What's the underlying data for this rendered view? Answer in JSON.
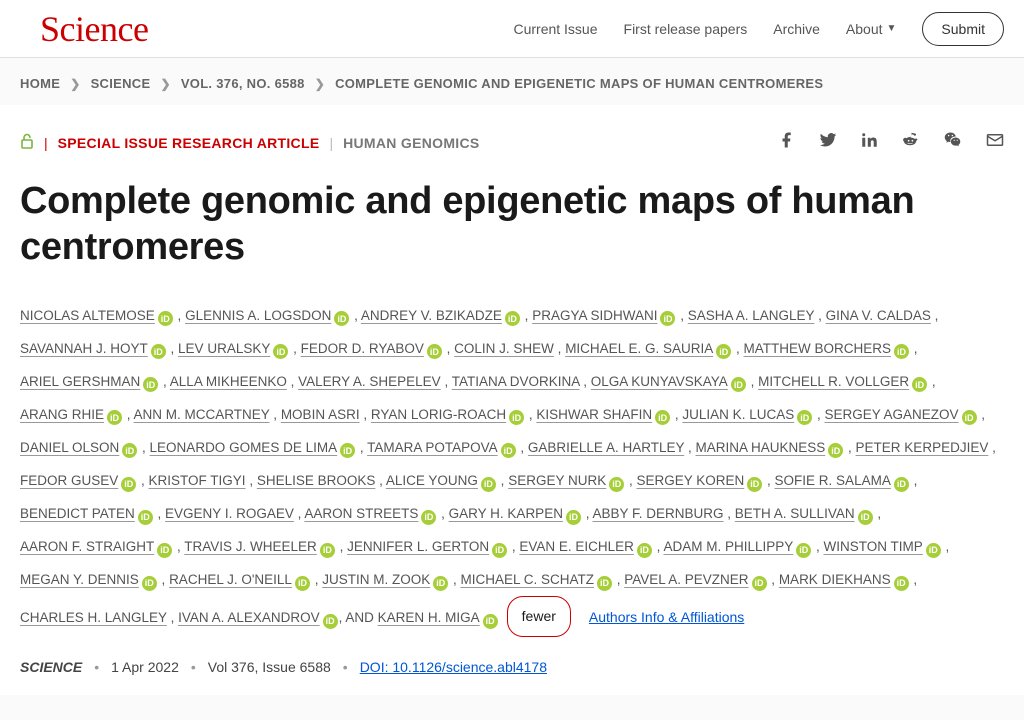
{
  "header": {
    "logo": "Science",
    "nav": {
      "current_issue": "Current Issue",
      "first_release": "First release papers",
      "archive": "Archive",
      "about": "About",
      "submit": "Submit"
    }
  },
  "breadcrumb": {
    "home": "HOME",
    "journal": "SCIENCE",
    "volume": "VOL. 376, NO. 6588",
    "article": "COMPLETE GENOMIC AND EPIGENETIC MAPS OF HUMAN CENTROMERES",
    "separator": "❯"
  },
  "meta": {
    "article_type": "SPECIAL ISSUE RESEARCH ARTICLE",
    "category": "HUMAN GENOMICS"
  },
  "title": "Complete genomic and epigenetic maps of human centromeres",
  "authors": [
    {
      "name": "NICOLAS ALTEMOSE",
      "orcid": true
    },
    {
      "name": "GLENNIS A. LOGSDON",
      "orcid": true
    },
    {
      "name": "ANDREY V. BZIKADZE",
      "orcid": true
    },
    {
      "name": "PRAGYA SIDHWANI",
      "orcid": true
    },
    {
      "name": "SASHA A. LANGLEY",
      "orcid": false
    },
    {
      "name": "GINA V. CALDAS",
      "orcid": false
    },
    {
      "name": "SAVANNAH J. HOYT",
      "orcid": true
    },
    {
      "name": "LEV URALSKY",
      "orcid": true
    },
    {
      "name": "FEDOR D. RYABOV",
      "orcid": true
    },
    {
      "name": "COLIN J. SHEW",
      "orcid": false
    },
    {
      "name": "MICHAEL E. G. SAURIA",
      "orcid": true
    },
    {
      "name": "MATTHEW BORCHERS",
      "orcid": true
    },
    {
      "name": "ARIEL GERSHMAN",
      "orcid": true
    },
    {
      "name": "ALLA MIKHEENKO",
      "orcid": false
    },
    {
      "name": "VALERY A. SHEPELEV",
      "orcid": false
    },
    {
      "name": "TATIANA DVORKINA",
      "orcid": false
    },
    {
      "name": "OLGA KUNYAVSKAYA",
      "orcid": true
    },
    {
      "name": "MITCHELL R. VOLLGER",
      "orcid": true
    },
    {
      "name": "ARANG RHIE",
      "orcid": true
    },
    {
      "name": "ANN M. MCCARTNEY",
      "orcid": false
    },
    {
      "name": "MOBIN ASRI",
      "orcid": false
    },
    {
      "name": "RYAN LORIG-ROACH",
      "orcid": true
    },
    {
      "name": "KISHWAR SHAFIN",
      "orcid": true
    },
    {
      "name": "JULIAN K. LUCAS",
      "orcid": true
    },
    {
      "name": "SERGEY AGANEZOV",
      "orcid": true
    },
    {
      "name": "DANIEL OLSON",
      "orcid": true
    },
    {
      "name": "LEONARDO GOMES DE LIMA",
      "orcid": true
    },
    {
      "name": "TAMARA POTAPOVA",
      "orcid": true
    },
    {
      "name": "GABRIELLE A. HARTLEY",
      "orcid": false
    },
    {
      "name": "MARINA HAUKNESS",
      "orcid": true
    },
    {
      "name": "PETER KERPEDJIEV",
      "orcid": false
    },
    {
      "name": "FEDOR GUSEV",
      "orcid": true
    },
    {
      "name": "KRISTOF TIGYI",
      "orcid": false
    },
    {
      "name": "SHELISE BROOKS",
      "orcid": false
    },
    {
      "name": "ALICE YOUNG",
      "orcid": true
    },
    {
      "name": "SERGEY NURK",
      "orcid": true
    },
    {
      "name": "SERGEY KOREN",
      "orcid": true
    },
    {
      "name": "SOFIE R. SALAMA",
      "orcid": true
    },
    {
      "name": "BENEDICT PATEN",
      "orcid": true
    },
    {
      "name": "EVGENY I. ROGAEV",
      "orcid": false
    },
    {
      "name": "AARON STREETS",
      "orcid": true
    },
    {
      "name": "GARY H. KARPEN",
      "orcid": true
    },
    {
      "name": "ABBY F. DERNBURG",
      "orcid": false
    },
    {
      "name": "BETH A. SULLIVAN",
      "orcid": true
    },
    {
      "name": "AARON F. STRAIGHT",
      "orcid": true
    },
    {
      "name": "TRAVIS J. WHEELER",
      "orcid": true
    },
    {
      "name": "JENNIFER L. GERTON",
      "orcid": true
    },
    {
      "name": "EVAN E. EICHLER",
      "orcid": true
    },
    {
      "name": "ADAM M. PHILLIPPY",
      "orcid": true
    },
    {
      "name": "WINSTON TIMP",
      "orcid": true
    },
    {
      "name": "MEGAN Y. DENNIS",
      "orcid": true
    },
    {
      "name": "RACHEL J. O'NEILL",
      "orcid": true
    },
    {
      "name": "JUSTIN M. ZOOK",
      "orcid": true
    },
    {
      "name": "MICHAEL C. SCHATZ",
      "orcid": true
    },
    {
      "name": "PAVEL A. PEVZNER",
      "orcid": true
    },
    {
      "name": "MARK DIEKHANS",
      "orcid": true
    },
    {
      "name": "CHARLES H. LANGLEY",
      "orcid": false
    },
    {
      "name": "IVAN A. ALEXANDROV",
      "orcid": true
    }
  ],
  "last_author_prefix": ", AND ",
  "last_author": {
    "name": "KAREN H. MIGA",
    "orcid": true
  },
  "fewer_label": "fewer",
  "authors_info_label": "Authors Info & Affiliations",
  "pub": {
    "journal": "SCIENCE",
    "date": "1 Apr 2022",
    "volume": "Vol 376, Issue 6588",
    "doi_label": "DOI: 10.1126/science.abl4178"
  },
  "orcid_glyph": "iD",
  "colors": {
    "brand_red": "#cc0000",
    "orcid_green": "#a6ce39",
    "link_blue": "#0056d6",
    "lock_green": "#7cb342"
  }
}
